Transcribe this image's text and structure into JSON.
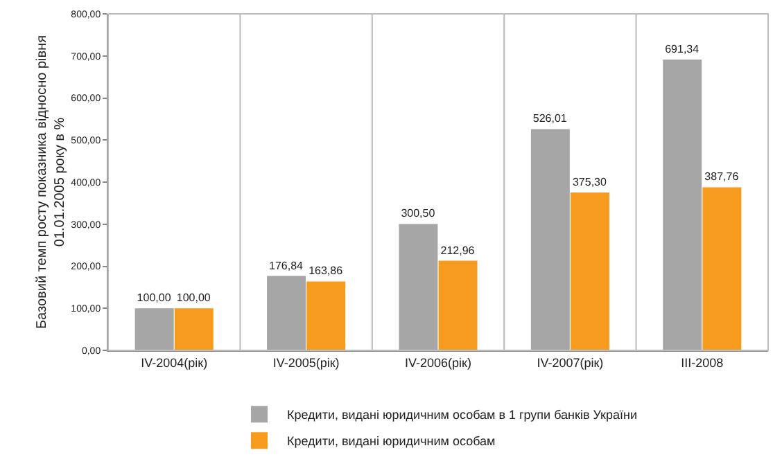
{
  "chart_data": {
    "type": "bar",
    "ylabel": "Базовий темп росту показника відносно рівня 01.01.2005 року в %",
    "categories": [
      "IV-2004(рік)",
      "IV-2005(рік)",
      "IV-2006(рік)",
      "IV-2007(рік)",
      "III-2008"
    ],
    "series": [
      {
        "name": "Кредити, видані юридичним особам в 1 групи банків України",
        "color": "#a6a6a6",
        "values": [
          100,
          176.84,
          300.5,
          526.01,
          691.34
        ],
        "value_labels": [
          "100,00",
          "176,84",
          "300,50",
          "526,01",
          "691,34"
        ]
      },
      {
        "name": "Кредити, видані юридичним особам",
        "color": "#f79b1e",
        "values": [
          100,
          163.86,
          212.96,
          375.3,
          387.76
        ],
        "value_labels": [
          "100,00",
          "163,86",
          "212,96",
          "375,30",
          "387,76"
        ]
      }
    ],
    "ylim": [
      0,
      800
    ],
    "yticks": [
      {
        "value": 0,
        "label": "0,00"
      },
      {
        "value": 100,
        "label": "100,00"
      },
      {
        "value": 200,
        "label": "200,00"
      },
      {
        "value": 300,
        "label": "300,00"
      },
      {
        "value": 400,
        "label": "400,00"
      },
      {
        "value": 500,
        "label": "500,00"
      },
      {
        "value": 600,
        "label": "600,00"
      },
      {
        "value": 700,
        "label": "700,00"
      },
      {
        "value": 800,
        "label": "800,00"
      }
    ],
    "grid": "x",
    "legend": "bottom"
  }
}
